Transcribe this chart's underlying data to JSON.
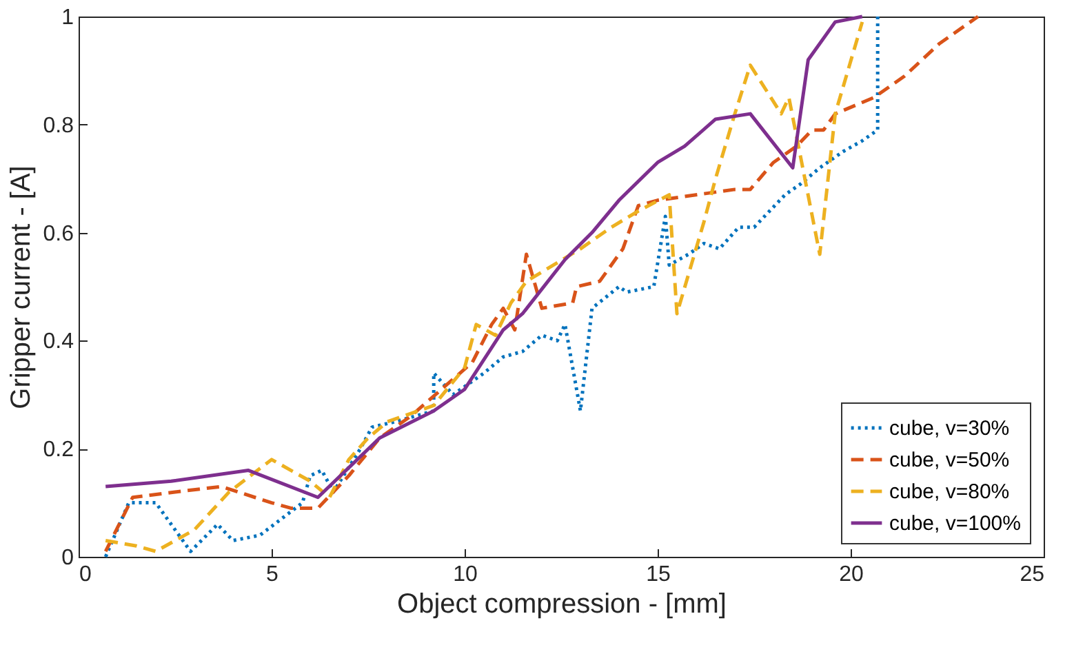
{
  "chart_data": {
    "type": "line",
    "xlabel": "Object compression - [mm]",
    "ylabel": "Gripper current - [A]",
    "xlim": [
      0,
      25
    ],
    "ylim": [
      0,
      1
    ],
    "xticks": [
      0,
      5,
      10,
      15,
      20,
      25
    ],
    "yticks": [
      0,
      0.2,
      0.4,
      0.6,
      0.8,
      1
    ],
    "grid": false,
    "legend": "bottom right",
    "marker": "none",
    "series": [
      {
        "name": "cube, v=30%",
        "color": "#0072bd",
        "line_style": "dotted",
        "x": [
          0.7,
          1.3,
          2.0,
          2.9,
          3.6,
          4.0,
          4.7,
          5.8,
          6.0,
          6.3,
          6.6,
          7.3,
          7.6,
          8.2,
          8.7,
          9.2,
          9.2,
          9.7,
          10.5,
          11,
          11.5,
          12,
          12.4,
          12.6,
          13,
          13.3,
          14,
          14.2,
          14.9,
          15.2,
          15.3,
          15.8,
          16.2,
          16.6,
          17.1,
          17.5,
          17.9,
          18.3,
          18.7,
          19.2,
          19.8,
          20.3,
          20.7,
          20.7
        ],
        "values": [
          0,
          0.1,
          0.1,
          0.01,
          0.06,
          0.03,
          0.04,
          0.1,
          0.15,
          0.16,
          0.12,
          0.2,
          0.24,
          0.25,
          0.26,
          0.27,
          0.34,
          0.3,
          0.34,
          0.37,
          0.38,
          0.41,
          0.4,
          0.43,
          0.27,
          0.46,
          0.5,
          0.49,
          0.5,
          0.63,
          0.54,
          0.56,
          0.58,
          0.57,
          0.61,
          0.61,
          0.64,
          0.67,
          0.69,
          0.72,
          0.75,
          0.77,
          0.79,
          1
        ]
      },
      {
        "name": "cube, v=50%",
        "color": "#d95319",
        "line_style": "dashed",
        "x": [
          0.7,
          1.4,
          2.5,
          3.7,
          5.0,
          5.5,
          6.2,
          7.0,
          7.8,
          8.6,
          9.4,
          10.2,
          10.7,
          11.0,
          11.3,
          11.6,
          12.0,
          12.8,
          12.9,
          13.5,
          14.1,
          14.5,
          15.0,
          17,
          17.4,
          18,
          18.6,
          19,
          19.3,
          19.6,
          20.6,
          21.4,
          22.3,
          23.3
        ],
        "values": [
          0.01,
          0.11,
          0.12,
          0.13,
          0.1,
          0.09,
          0.09,
          0.15,
          0.22,
          0.26,
          0.31,
          0.36,
          0.43,
          0.46,
          0.42,
          0.56,
          0.46,
          0.47,
          0.5,
          0.51,
          0.57,
          0.65,
          0.66,
          0.68,
          0.68,
          0.73,
          0.76,
          0.79,
          0.79,
          0.82,
          0.85,
          0.89,
          0.95,
          1
        ]
      },
      {
        "name": "cube, v=80%",
        "color": "#edb120",
        "line_style": "dashed",
        "x": [
          0.7,
          1.5,
          2.0,
          3,
          3.9,
          5.0,
          6.0,
          6.5,
          7.0,
          7.5,
          8.0,
          8.8,
          9.2,
          10,
          10.3,
          10.8,
          11.2,
          11.6,
          12.3,
          13,
          13.8,
          14.5,
          15.3,
          15.5,
          16.2,
          16.5,
          17,
          17.4,
          18.2,
          18.4,
          19.2,
          19.6,
          20.3
        ],
        "values": [
          0.03,
          0.02,
          0.01,
          0.05,
          0.12,
          0.18,
          0.14,
          0.11,
          0.18,
          0.22,
          0.25,
          0.27,
          0.28,
          0.35,
          0.43,
          0.41,
          0.47,
          0.51,
          0.54,
          0.57,
          0.61,
          0.64,
          0.67,
          0.45,
          0.62,
          0.7,
          0.82,
          0.91,
          0.82,
          0.85,
          0.56,
          0.82,
          0.99
        ]
      },
      {
        "name": "cube, v=100%",
        "color": "#7e2f8e",
        "line_style": "solid",
        "x": [
          0.7,
          2.4,
          4.4,
          6.2,
          7.8,
          9.2,
          10,
          11,
          11.5,
          12.6,
          13.3,
          14.0,
          15.0,
          15.7,
          16.5,
          17.4,
          18.5,
          18.9,
          19.6,
          20.3
        ],
        "values": [
          0.13,
          0.14,
          0.16,
          0.11,
          0.22,
          0.27,
          0.31,
          0.42,
          0.45,
          0.55,
          0.6,
          0.66,
          0.73,
          0.76,
          0.81,
          0.82,
          0.72,
          0.92,
          0.99,
          1
        ]
      }
    ]
  }
}
